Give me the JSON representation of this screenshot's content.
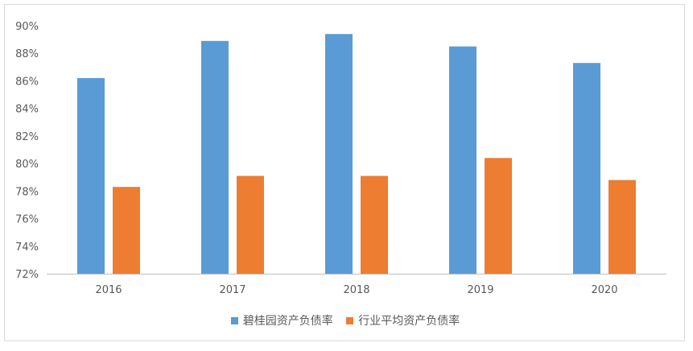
{
  "chart_data": {
    "type": "bar",
    "categories": [
      "2016",
      "2017",
      "2018",
      "2019",
      "2020"
    ],
    "series": [
      {
        "name": "碧桂园资产负债率",
        "values": [
          86.2,
          88.9,
          89.4,
          88.5,
          87.3
        ],
        "color": "#5b9bd5"
      },
      {
        "name": "行业平均资产负债率",
        "values": [
          78.3,
          79.1,
          79.1,
          80.4,
          78.8
        ],
        "color": "#ed7d31"
      }
    ],
    "y_ticks": [
      "72%",
      "74%",
      "76%",
      "78%",
      "80%",
      "82%",
      "84%",
      "86%",
      "88%",
      "90%"
    ],
    "ylim": [
      72,
      90
    ],
    "y_unit": "%",
    "grid": false,
    "legend_position": "bottom"
  }
}
